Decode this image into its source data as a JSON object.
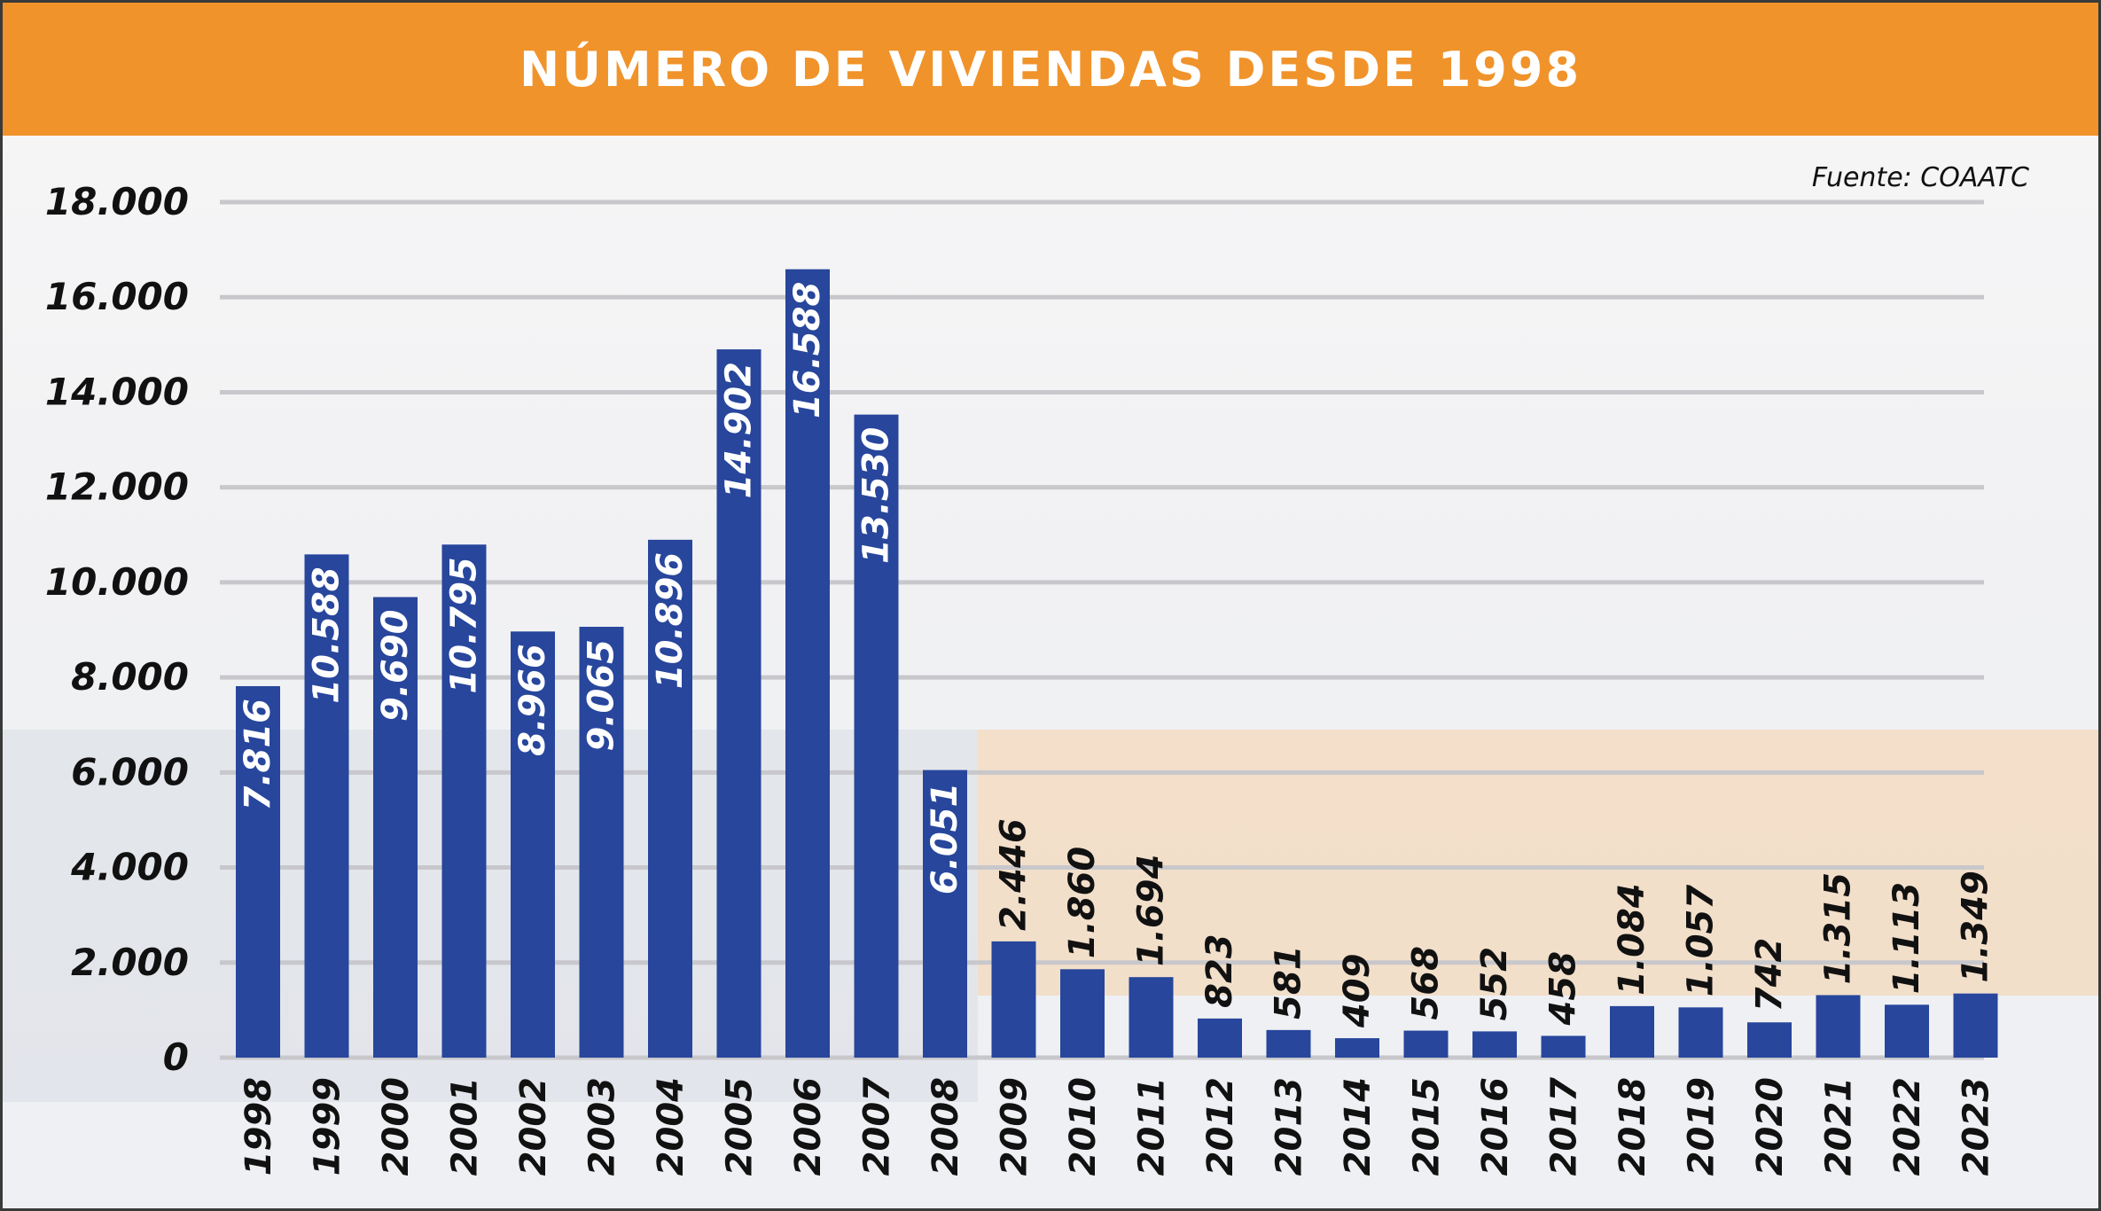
{
  "header": {
    "title": "NÚMERO DE VIVIENDAS DESDE 1998"
  },
  "source_note": "Fuente: COAATC",
  "colors": {
    "header": "#f0932b",
    "bar": "#27469c",
    "grid": "#c8c8cc",
    "text": "#111111"
  },
  "chart_data": {
    "type": "bar",
    "title": "NÚMERO DE VIVIENDAS DESDE 1998",
    "categories": [
      "1998",
      "1999",
      "2000",
      "2001",
      "2002",
      "2003",
      "2004",
      "2005",
      "2006",
      "2007",
      "2008",
      "2009",
      "2010",
      "2011",
      "2012",
      "2013",
      "2014",
      "2015",
      "2016",
      "2017",
      "2018",
      "2019",
      "2020",
      "2021",
      "2022",
      "2023"
    ],
    "values": [
      7816,
      10588,
      9690,
      10795,
      8966,
      9065,
      10896,
      14902,
      16588,
      13530,
      6051,
      2446,
      1860,
      1694,
      823,
      581,
      409,
      568,
      552,
      458,
      1084,
      1057,
      742,
      1315,
      1113,
      1349
    ],
    "value_labels": [
      "7.816",
      "10.588",
      "9.690",
      "10.795",
      "8.966",
      "9.065",
      "10.896",
      "14.902",
      "16.588",
      "13.530",
      "6.051",
      "2.446",
      "1.860",
      "1.694",
      "823",
      "581",
      "409",
      "568",
      "552",
      "458",
      "1.084",
      "1.057",
      "742",
      "1.315",
      "1.113",
      "1.349"
    ],
    "ylim": [
      0,
      18000
    ],
    "yticks": [
      0,
      2000,
      4000,
      6000,
      8000,
      10000,
      12000,
      14000,
      16000,
      18000
    ],
    "ytick_labels": [
      "0",
      "2.000",
      "4.000",
      "6.000",
      "8.000",
      "10.000",
      "12.000",
      "14.000",
      "16.000",
      "18.000"
    ],
    "grid": true,
    "xlabel": "",
    "ylabel": ""
  }
}
